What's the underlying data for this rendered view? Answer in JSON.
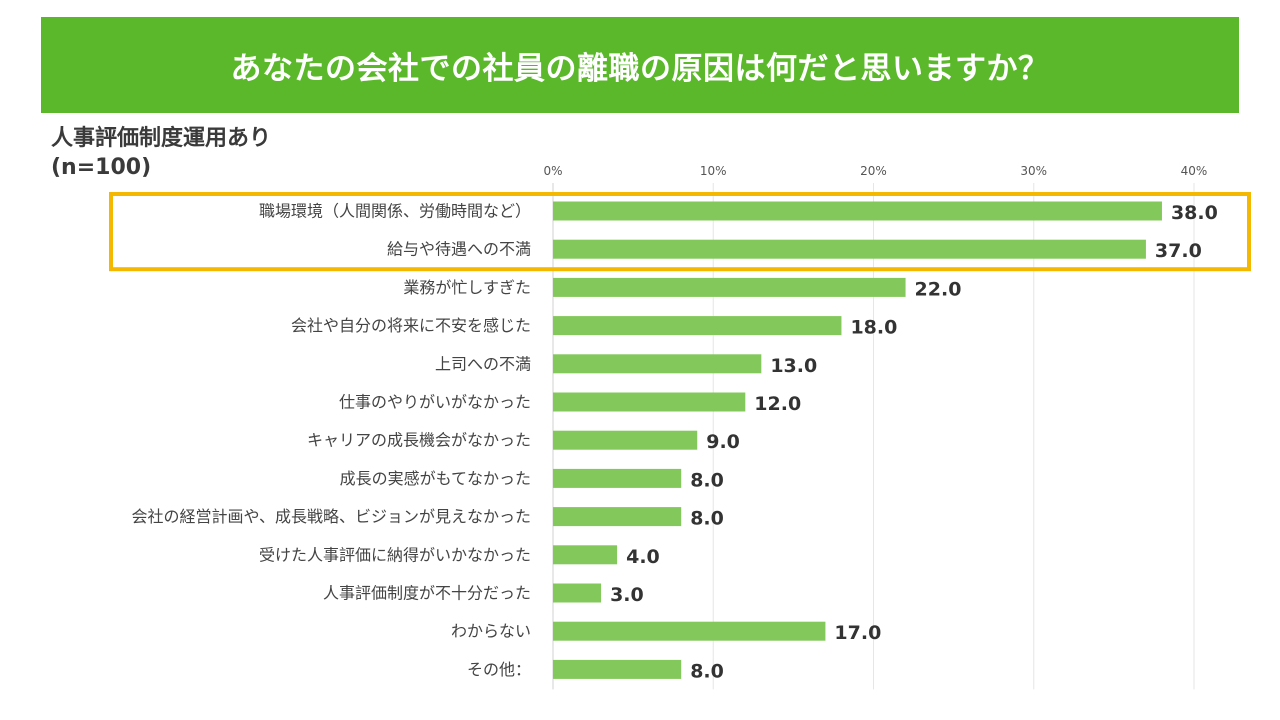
{
  "header": {
    "title": "あなたの会社での社員の離職の原因は何だと思いますか？"
  },
  "segment": {
    "label": "人事評価制度運用あり",
    "n": "(n=100)"
  },
  "colors": {
    "header_bg": "#5ab82a",
    "bar": "#82c85a",
    "highlight": "#f5b800"
  },
  "chart_data": {
    "type": "bar",
    "orientation": "horizontal",
    "categories": [
      "職場環境（人間関係、労働時間など）",
      "給与や待遇への不満",
      "業務が忙しすぎた",
      "会社や自分の将来に不安を感じた",
      "上司への不満",
      "仕事のやりがいがなかった",
      "キャリアの成長機会がなかった",
      "成長の実感がもてなかった",
      "会社の経営計画や、成長戦略、ビジョンが見えなかった",
      "受けた人事評価に納得がいかなかった",
      "人事評価制度が不十分だった",
      "わからない",
      "その他："
    ],
    "values": [
      38.0,
      37.0,
      22.0,
      18.0,
      13.0,
      12.0,
      9.0,
      8.0,
      8.0,
      4.0,
      3.0,
      17.0,
      8.0
    ],
    "value_labels": [
      "38.0",
      "37.0",
      "22.0",
      "18.0",
      "13.0",
      "12.0",
      "9.0",
      "8.0",
      "8.0",
      "4.0",
      "3.0",
      "17.0",
      "8.0"
    ],
    "xticks": [
      "0%",
      "10%",
      "20%",
      "30%",
      "40%"
    ],
    "xlim": [
      0,
      40
    ],
    "grid": true,
    "highlighted_categories": [
      "職場環境（人間関係、労働時間など）",
      "給与や待遇への不満"
    ]
  }
}
